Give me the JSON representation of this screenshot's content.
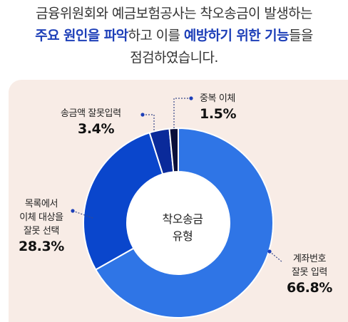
{
  "headline": {
    "line1": "금융위원회와 예금보험공사는 착오송금이 발생하는",
    "line2_bold1": "주요 원인을 파악",
    "line2_mid": "하고 이를 ",
    "line2_bold2": "예방하기 위한 기능",
    "line2_end": "들을",
    "line3": "점검하였습니다."
  },
  "colors": {
    "highlight": "#1d3fb8",
    "panel_bg": "#f8ece6",
    "slice_account": "#2f75e6",
    "slice_contact": "#0a46cc",
    "slice_amount": "#0a2a9a",
    "slice_duplicate": "#0a0f3a"
  },
  "chart_data": {
    "type": "pie",
    "donut": true,
    "center_label": [
      "착오송금",
      "유형"
    ],
    "slices": [
      {
        "name": "계좌번호 잘못 입력",
        "name_lines": [
          "계좌번호",
          "잘못 입력"
        ],
        "value": 66.8,
        "value_label": "66.8%",
        "color": "#2f75e6"
      },
      {
        "name": "목록에서 이체 대상을 잘못 선택",
        "name_lines": [
          "목록에서",
          "이체 대상을",
          "잘못 선택"
        ],
        "value": 28.3,
        "value_label": "28.3%",
        "color": "#0a46cc"
      },
      {
        "name": "송금액 잘못입력",
        "name_lines": [
          "송금액 잘못입력"
        ],
        "value": 3.4,
        "value_label": "3.4%",
        "color": "#0a2a9a"
      },
      {
        "name": "중복 이체",
        "name_lines": [
          "중복 이체"
        ],
        "value": 1.5,
        "value_label": "1.5%",
        "color": "#0a0f3a"
      }
    ]
  }
}
